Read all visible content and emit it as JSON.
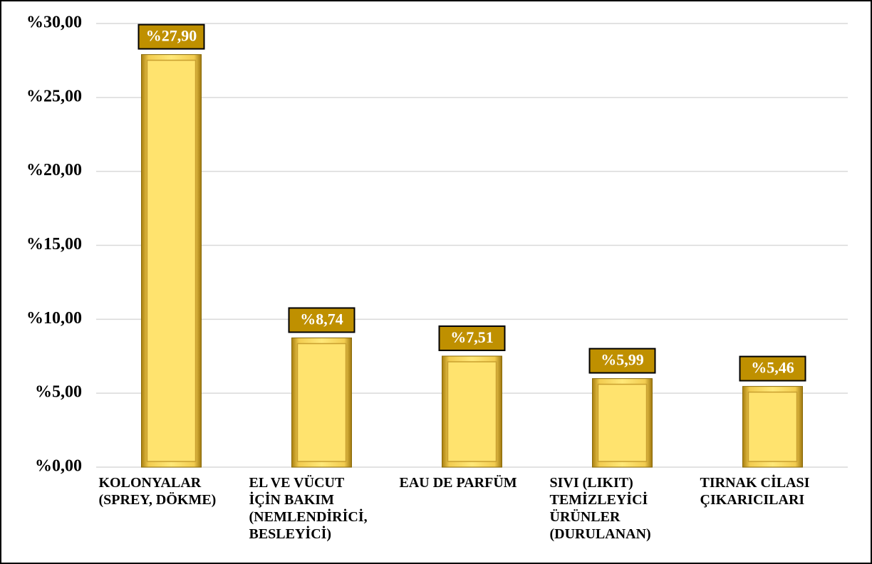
{
  "chart_data": {
    "type": "bar",
    "categories": [
      "KOLONYALAR\n(SPREY, DÖKME)",
      "EL VE VÜCUT\nİÇİN BAKIM\n(NEMLENDİRİCİ,\nBESLEYİCİ)",
      "EAU DE PARFÜM",
      "SIVI (LIKIT)\nTEMİZLEYİCİ\nÜRÜNLER\n(DURULANAN)",
      "TIRNAK CİLASI\nÇIKARICILARI"
    ],
    "values": [
      27.9,
      8.74,
      7.51,
      5.99,
      5.46
    ],
    "value_labels": [
      "%27,90",
      "%8,74",
      "%7,51",
      "%5,99",
      "%5,46"
    ],
    "color": "#ffe36e",
    "label_box_color": "#bf9000",
    "ylim": [
      0,
      30
    ],
    "yticks": [
      {
        "value": 0,
        "label": "%0,00"
      },
      {
        "value": 5,
        "label": "%5,00"
      },
      {
        "value": 10,
        "label": "%10,00"
      },
      {
        "value": 15,
        "label": "%15,00"
      },
      {
        "value": 20,
        "label": "%20,00"
      },
      {
        "value": 25,
        "label": "%25,00"
      },
      {
        "value": 30,
        "label": "%30,00"
      }
    ],
    "grid": true
  }
}
